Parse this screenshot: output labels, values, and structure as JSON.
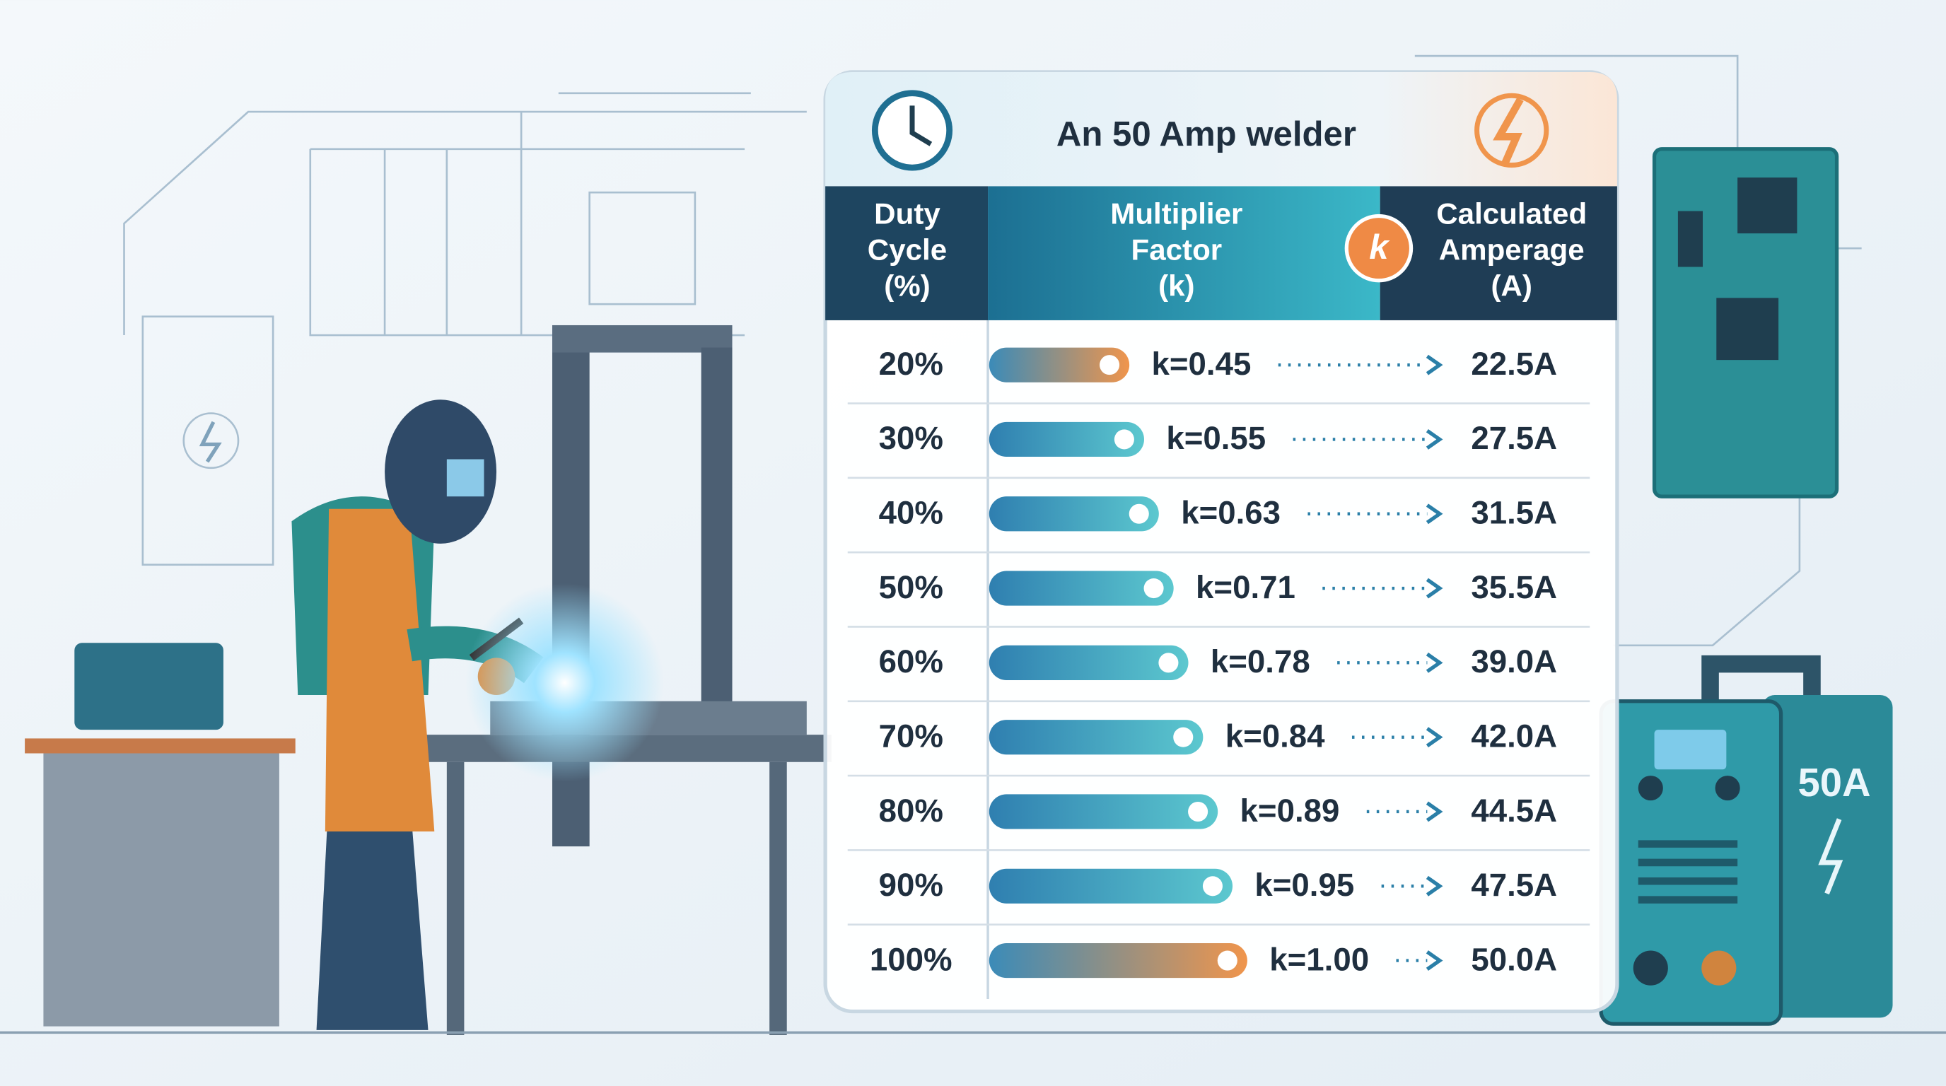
{
  "header": {
    "title": "An 50 Amp welder",
    "badge": "k",
    "columns": [
      {
        "lines": [
          "Duty",
          "Cycle",
          "(%)"
        ]
      },
      {
        "lines": [
          "Multiplier",
          "Factor",
          "(k)"
        ]
      },
      {
        "lines": [
          "Calculated",
          "Amperage",
          "(A)"
        ]
      }
    ]
  },
  "table": {
    "rows": [
      [
        "20%",
        "k=0.45",
        "22.5A"
      ],
      [
        "30%",
        "k=0.55",
        "27.5A"
      ],
      [
        "40%",
        "k=0.63",
        "31.5A"
      ],
      [
        "50%",
        "k=0.71",
        "35.5A"
      ],
      [
        "60%",
        "k=0.78",
        "39.0A"
      ],
      [
        "70%",
        "k=0.84",
        "42.0A"
      ],
      [
        "80%",
        "k=0.89",
        "44.5A"
      ],
      [
        "90%",
        "k=0.95",
        "47.5A"
      ],
      [
        "100%",
        "k=1.00",
        "50.0A"
      ]
    ]
  },
  "machine": {
    "label": "50A"
  }
}
